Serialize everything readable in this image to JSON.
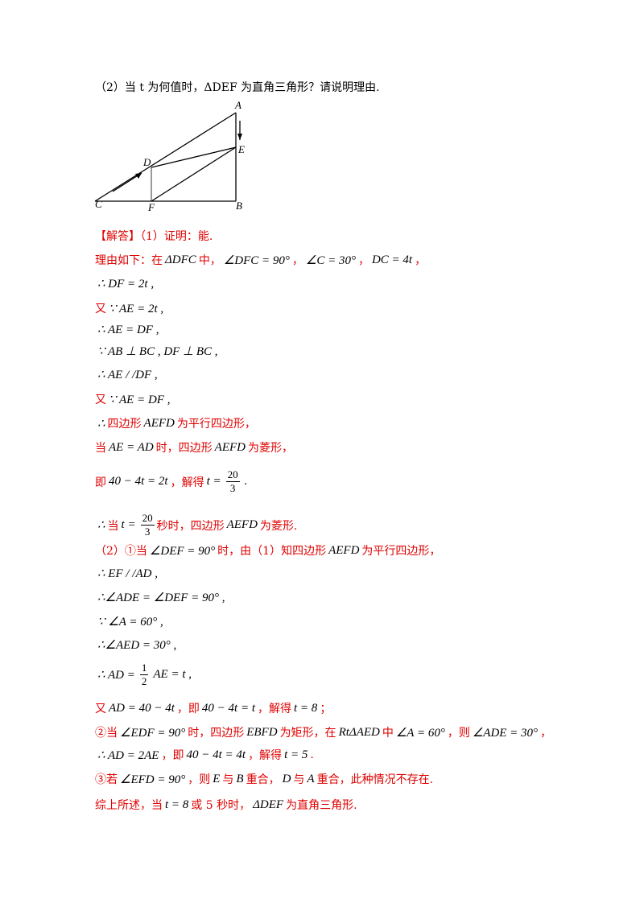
{
  "question": "（2）当 t 为何值时，ΔDEF 为直角三角形？请说明理由.",
  "figure": {
    "labels": [
      "A",
      "E",
      "D",
      "C",
      "F",
      "B"
    ]
  },
  "lines": [
    [
      {
        "t": "【解答】（1）证明：能.",
        "red": true
      }
    ],
    [
      {
        "t": "理由如下：在",
        "red": true
      },
      {
        "t": "ΔDFC"
      },
      {
        "t": "中，",
        "red": true
      },
      {
        "t": "∠DFC = 90°"
      },
      {
        "t": "，",
        "red": true
      },
      {
        "t": "∠C = 30°"
      },
      {
        "t": "，",
        "red": true
      },
      {
        "t": "DC = 4t"
      },
      {
        "t": "，",
        "red": true
      }
    ],
    [
      {
        "t": "∴ DF = 2t ,"
      }
    ],
    [
      {
        "t": "又",
        "red": true
      },
      {
        "t": "∵ AE = 2t ,"
      }
    ],
    [
      {
        "t": "∴ AE = DF ,"
      }
    ],
    [
      {
        "t": "∵ AB ⊥ BC ,  DF ⊥ BC ,"
      }
    ],
    [
      {
        "t": "∴ AE / /DF ,"
      }
    ],
    [
      {
        "t": "又",
        "red": true
      },
      {
        "t": "∵ AE = DF ,"
      }
    ],
    [
      {
        "t": "∴ "
      },
      {
        "t": "四边形",
        "red": true
      },
      {
        "t": "AEFD"
      },
      {
        "t": "为平行四边形，",
        "red": true
      }
    ],
    [
      {
        "t": "当",
        "red": true
      },
      {
        "t": "AE = AD"
      },
      {
        "t": "时，四边形",
        "red": true
      },
      {
        "t": "AEFD"
      },
      {
        "t": "为菱形，",
        "red": true
      }
    ],
    [
      {
        "t": "即",
        "red": true
      },
      {
        "t": "40 − 4t = 2t"
      },
      {
        "t": "，解得",
        "red": true
      },
      {
        "t": "t ="
      },
      {
        "num": "20",
        "den": "3"
      },
      {
        "t": " ."
      }
    ],
    [
      {
        "t": "∴ "
      },
      {
        "t": "当",
        "red": true
      },
      {
        "t": "t ="
      },
      {
        "num": "20",
        "den": "3"
      },
      {
        "t": "秒时，四边形",
        "red": true
      },
      {
        "t": "AEFD"
      },
      {
        "t": "为菱形.",
        "red": true
      }
    ],
    [
      {
        "t": "（2）①当",
        "red": true
      },
      {
        "t": "∠DEF = 90°"
      },
      {
        "t": "时，由（1）知四边形",
        "red": true
      },
      {
        "t": "AEFD"
      },
      {
        "t": "为平行四边形，",
        "red": true
      }
    ],
    [
      {
        "t": "∴ EF / /AD ,"
      }
    ],
    [
      {
        "t": "∴∠ADE = ∠DEF = 90° ,"
      }
    ],
    [
      {
        "t": "∵ ∠A = 60° ,"
      }
    ],
    [
      {
        "t": "∴∠AED = 30° ,"
      }
    ],
    [
      {
        "t": "∴ AD ="
      },
      {
        "num": "1",
        "den": "2"
      },
      {
        "t": "AE = t ,"
      }
    ],
    [
      {
        "t": "又",
        "red": true
      },
      {
        "t": "AD = 40 − 4t"
      },
      {
        "t": "，即",
        "red": true
      },
      {
        "t": "40 − 4t = t"
      },
      {
        "t": "，解得",
        "red": true
      },
      {
        "t": "t = 8"
      },
      {
        "t": "；",
        "red": true
      }
    ],
    [
      {
        "t": "②当",
        "red": true
      },
      {
        "t": "∠EDF = 90°"
      },
      {
        "t": "时，四边形",
        "red": true
      },
      {
        "t": "EBFD"
      },
      {
        "t": "为矩形，在",
        "red": true
      },
      {
        "t": "RtΔAED"
      },
      {
        "t": "中",
        "red": true
      },
      {
        "t": "∠A = 60°"
      },
      {
        "t": "，则",
        "red": true
      },
      {
        "t": "∠ADE = 30°"
      },
      {
        "t": "，",
        "red": true
      }
    ],
    [
      {
        "t": "∴ AD = 2AE"
      },
      {
        "t": "，即",
        "red": true
      },
      {
        "t": "40 − 4t = 4t"
      },
      {
        "t": "，解得",
        "red": true
      },
      {
        "t": "t = 5"
      },
      {
        "t": ".",
        "red": true
      }
    ],
    [
      {
        "t": "③若",
        "red": true
      },
      {
        "t": "∠EFD = 90°"
      },
      {
        "t": "，则",
        "red": true
      },
      {
        "t": "E"
      },
      {
        "t": "与",
        "red": true
      },
      {
        "t": "B"
      },
      {
        "t": "重合，",
        "red": true
      },
      {
        "t": "D"
      },
      {
        "t": "与",
        "red": true
      },
      {
        "t": "A"
      },
      {
        "t": "重合，此种情况不存在.",
        "red": true
      }
    ],
    [
      {
        "t": "综上所述，当",
        "red": true
      },
      {
        "t": "t = 8"
      },
      {
        "t": "或 5 秒时，",
        "red": true
      },
      {
        "t": "ΔDEF"
      },
      {
        "t": "为直角三角形.",
        "red": true
      }
    ]
  ]
}
